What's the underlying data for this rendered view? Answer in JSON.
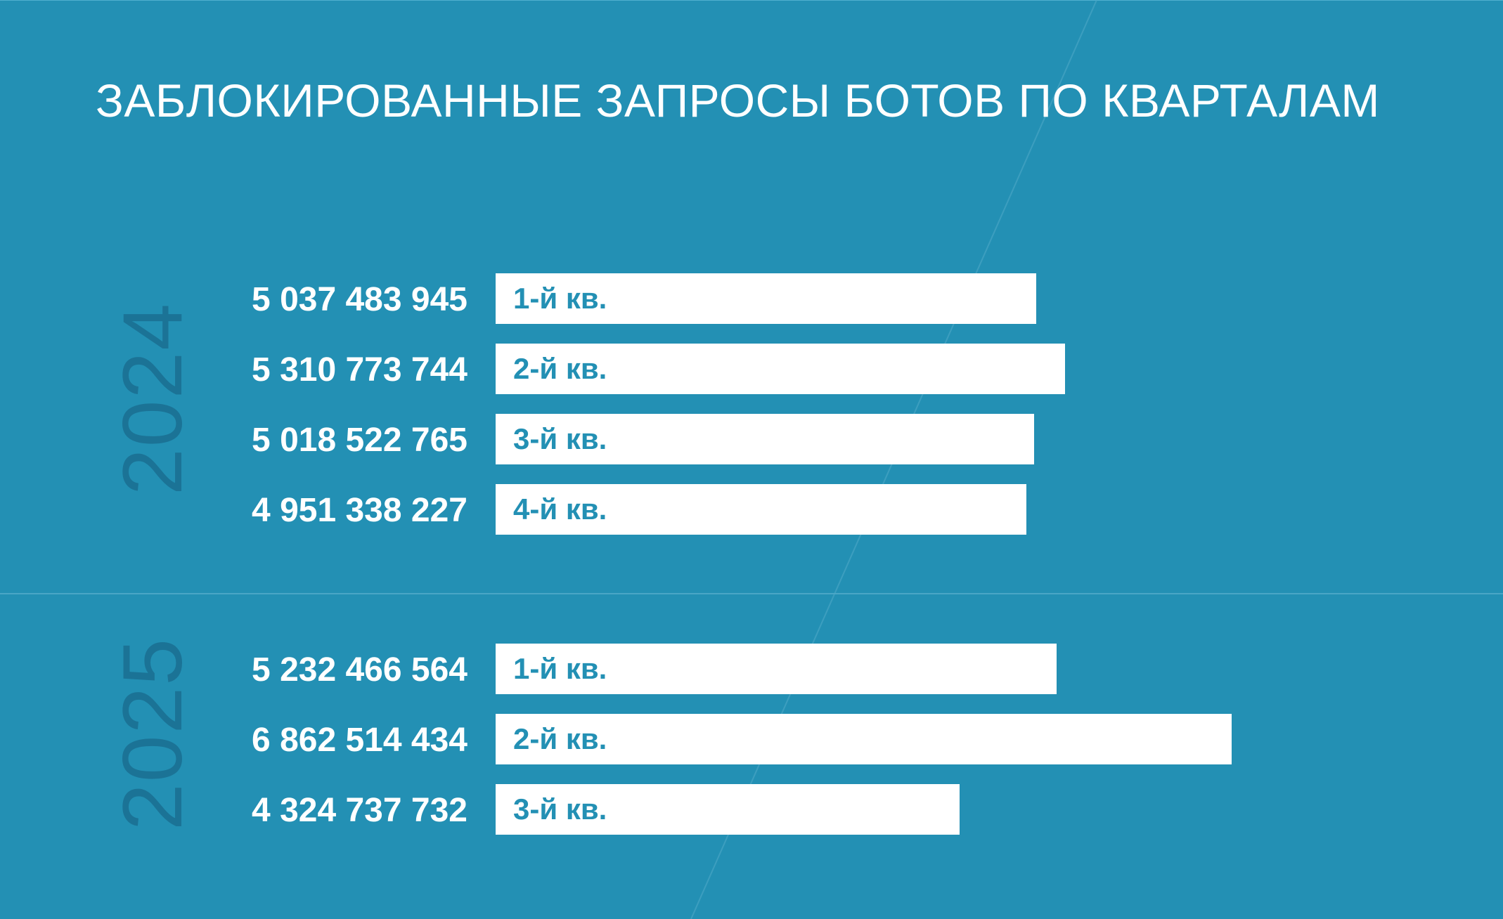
{
  "title": "ЗАБЛОКИРОВАННЫЕ ЗАПРОСЫ БОТОВ ПО КВАРТАЛАМ",
  "colors": {
    "background": "#2390b4",
    "bar": "#ffffff",
    "bar_label": "#2390b4",
    "year_text": "#1b7396"
  },
  "chart_data": {
    "type": "bar",
    "orientation": "horizontal",
    "title": "ЗАБЛОКИРОВАННЫЕ ЗАПРОСЫ БОТОВ ПО КВАРТАЛАМ",
    "groups": [
      {
        "year": "2024",
        "bars": [
          {
            "label": "1-й кв.",
            "value": 5037483945,
            "value_text": "5 037 483 945"
          },
          {
            "label": "2-й кв.",
            "value": 5310773744,
            "value_text": "5 310 773 744"
          },
          {
            "label": "3-й кв.",
            "value": 5018522765,
            "value_text": "5 018 522 765"
          },
          {
            "label": "4-й кв.",
            "value": 4951338227,
            "value_text": "4 951 338 227"
          }
        ]
      },
      {
        "year": "2025",
        "bars": [
          {
            "label": "1-й кв.",
            "value": 5232466564,
            "value_text": "5 232 466 564"
          },
          {
            "label": "2-й кв.",
            "value": 6862514434,
            "value_text": "6 862 514 434"
          },
          {
            "label": "3-й кв.",
            "value": 4324737732,
            "value_text": "4 324 737 732"
          }
        ]
      }
    ]
  }
}
